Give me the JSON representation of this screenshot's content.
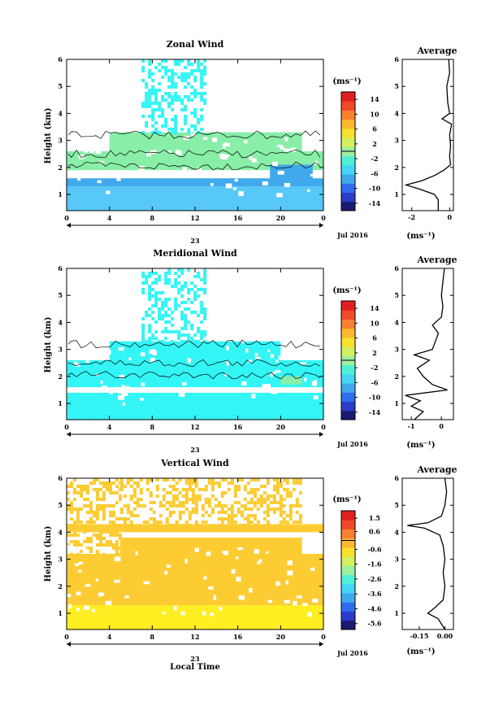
{
  "figure": {
    "date_label": "Jul 2016",
    "day_label": "23",
    "local_time_label": "Local Time",
    "ylabel": "Height (km)",
    "avg_title": "Average",
    "unit": "(ms⁻¹)",
    "colors": {
      "white": "#ffffff",
      "cyan": "#33f5f5",
      "green": "#88eea8",
      "lightblue": "#58c8f8",
      "blue": "#3fa9ec",
      "yellow": "#ffee22",
      "gold": "#fdcc33",
      "orange": "#f8a840"
    }
  },
  "chart_data": [
    {
      "type": "heatmap",
      "title": "Zonal Wind",
      "xlabel": "",
      "ylabel": "Height (km)",
      "xlim": [
        0,
        24
      ],
      "ylim": [
        0.4,
        6
      ],
      "xticks": [
        "0",
        "4",
        "8",
        "12",
        "16",
        "20",
        "0"
      ],
      "yticks": [
        "1",
        "2",
        "3",
        "4",
        "5",
        "6"
      ],
      "colorbar": {
        "unit": "(ms⁻¹)",
        "ticks": [
          "14",
          "10",
          "6",
          "2",
          "-2",
          "-6",
          "-10",
          "-14"
        ],
        "range": [
          -16,
          16
        ],
        "palette": [
          "#1a1a6e",
          "#2a3cc9",
          "#2f6cf0",
          "#3fa9ec",
          "#45d5f5",
          "#50f0d8",
          "#9cf0a0",
          "#d4f060",
          "#f8e030",
          "#fcb830",
          "#f88030",
          "#ef4a2a",
          "#e02020"
        ]
      },
      "regions": [
        {
          "x0": 0,
          "x1": 24,
          "y0": 0.4,
          "y1": 1.3,
          "color": "lightblue"
        },
        {
          "x0": 0,
          "x1": 24,
          "y0": 1.3,
          "y1": 1.6,
          "color": "blue"
        },
        {
          "x0": 0,
          "x1": 24,
          "y0": 1.6,
          "y1": 1.9,
          "color": "white"
        },
        {
          "x0": 0,
          "x1": 24,
          "y0": 1.9,
          "y1": 2.6,
          "color": "green"
        },
        {
          "x0": 4,
          "x1": 22,
          "y0": 2.6,
          "y1": 3.3,
          "color": "green"
        },
        {
          "x0": 19,
          "x1": 23,
          "y0": 1.3,
          "y1": 2.1,
          "color": "blue"
        },
        {
          "x0": 7,
          "x1": 13,
          "y0": 3.3,
          "y1": 6,
          "color": "cyan",
          "sparse": true
        }
      ],
      "average": {
        "xlim": [
          -2.5,
          0.2
        ],
        "xticks": [
          "-2",
          "0"
        ],
        "xlabel": "(ms⁻¹)",
        "heights": [
          0.4,
          0.8,
          1.0,
          1.2,
          1.35,
          1.5,
          1.7,
          1.9,
          2.1,
          2.4,
          2.8,
          3.2,
          3.6,
          3.8,
          4.0,
          4.4,
          5.0,
          5.5,
          6.0
        ],
        "values": [
          -0.6,
          -0.6,
          -0.8,
          -1.6,
          -2.3,
          -1.5,
          -0.8,
          -0.3,
          0.05,
          0.0,
          0.05,
          0.0,
          0.1,
          -0.4,
          0.0,
          -0.1,
          -0.15,
          0.0,
          -0.05
        ]
      }
    },
    {
      "type": "heatmap",
      "title": "Meridional Wind",
      "xlabel": "",
      "ylabel": "Height (km)",
      "xlim": [
        0,
        24
      ],
      "ylim": [
        0.4,
        6
      ],
      "xticks": [
        "0",
        "4",
        "8",
        "12",
        "16",
        "20",
        "0"
      ],
      "yticks": [
        "1",
        "2",
        "3",
        "4",
        "5",
        "6"
      ],
      "colorbar": {
        "unit": "(ms⁻¹)",
        "ticks": [
          "14",
          "10",
          "6",
          "2",
          "-2",
          "-6",
          "-10",
          "-14"
        ],
        "range": [
          -16,
          16
        ],
        "palette": [
          "#1a1a6e",
          "#2a3cc9",
          "#2f6cf0",
          "#3fa9ec",
          "#45d5f5",
          "#50f0d8",
          "#9cf0a0",
          "#d4f060",
          "#f8e030",
          "#fcb830",
          "#f88030",
          "#ef4a2a",
          "#e02020"
        ]
      },
      "regions": [
        {
          "x0": 0,
          "x1": 24,
          "y0": 0.4,
          "y1": 1.4,
          "color": "cyan"
        },
        {
          "x0": 0,
          "x1": 24,
          "y0": 1.4,
          "y1": 1.6,
          "color": "white"
        },
        {
          "x0": 0,
          "x1": 24,
          "y0": 1.6,
          "y1": 2.6,
          "color": "cyan"
        },
        {
          "x0": 4,
          "x1": 20,
          "y0": 2.6,
          "y1": 3.3,
          "color": "cyan"
        },
        {
          "x0": 20,
          "x1": 22,
          "y0": 1.7,
          "y1": 2.0,
          "color": "green"
        },
        {
          "x0": 7,
          "x1": 13,
          "y0": 3.3,
          "y1": 6,
          "color": "cyan",
          "sparse": true
        }
      ],
      "average": {
        "xlim": [
          -1.3,
          0.4
        ],
        "xticks": [
          "-1",
          "0"
        ],
        "xlabel": "(ms⁻¹)",
        "heights": [
          0.4,
          0.7,
          0.9,
          1.1,
          1.3,
          1.5,
          1.7,
          2.0,
          2.3,
          2.6,
          2.8,
          3.0,
          3.3,
          3.6,
          3.9,
          4.2,
          4.6,
          5.0,
          5.5,
          6.0
        ],
        "values": [
          -0.9,
          -0.6,
          -1.0,
          -0.7,
          -1.2,
          0.2,
          -0.3,
          -0.6,
          -0.8,
          -0.4,
          -0.9,
          -0.3,
          -0.2,
          -0.1,
          -0.3,
          0.0,
          0.05,
          0.0,
          0.05,
          0.1
        ]
      }
    },
    {
      "type": "heatmap",
      "title": "Vertical Wind",
      "xlabel": "Local Time",
      "ylabel": "Height (km)",
      "xlim": [
        0,
        24
      ],
      "ylim": [
        0.4,
        6
      ],
      "xticks": [
        "0",
        "4",
        "8",
        "12",
        "16",
        "20",
        "0"
      ],
      "yticks": [
        "1",
        "2",
        "3",
        "4",
        "5",
        "6"
      ],
      "colorbar": {
        "unit": "(ms⁻¹)",
        "ticks": [
          "1.5",
          "0.6",
          "-0.6",
          "-1.6",
          "-2.6",
          "-3.6",
          "-4.6",
          "-5.6"
        ],
        "range": [
          -6,
          2
        ],
        "palette": [
          "#1a1a6e",
          "#2a3cc9",
          "#2f6cf0",
          "#3fa9ec",
          "#45d5f5",
          "#50f0d8",
          "#9cf0a0",
          "#d4f060",
          "#f8e030",
          "#fcb830",
          "#f88030",
          "#ef4a2a",
          "#e02020"
        ]
      },
      "regions": [
        {
          "x0": 0,
          "x1": 24,
          "y0": 0.4,
          "y1": 1.3,
          "color": "yellow"
        },
        {
          "x0": 0,
          "x1": 24,
          "y0": 1.3,
          "y1": 3.2,
          "color": "gold"
        },
        {
          "x0": 5,
          "x1": 22,
          "y0": 3.2,
          "y1": 3.8,
          "color": "gold"
        },
        {
          "x0": 0,
          "x1": 24,
          "y0": 4.0,
          "y1": 4.3,
          "color": "gold"
        },
        {
          "x0": 0,
          "x1": 5,
          "y0": 2.6,
          "y1": 6,
          "color": "gold",
          "sparse": true
        },
        {
          "x0": 5,
          "x1": 22,
          "y0": 4.3,
          "y1": 6,
          "color": "gold",
          "sparse": true
        }
      ],
      "average": {
        "xlim": [
          -0.25,
          0.05
        ],
        "xticks": [
          "-0.15",
          "0.00"
        ],
        "xlabel": "(ms⁻¹)",
        "heights": [
          0.4,
          0.8,
          1.0,
          1.2,
          1.5,
          2.0,
          2.5,
          3.0,
          3.5,
          3.9,
          4.15,
          4.25,
          4.35,
          4.6,
          5.0,
          5.5,
          6.0
        ],
        "values": [
          0.0,
          -0.04,
          -0.1,
          -0.06,
          -0.01,
          0.0,
          -0.01,
          0.0,
          -0.01,
          -0.03,
          -0.12,
          -0.22,
          -0.1,
          -0.02,
          0.0,
          0.01,
          0.0
        ]
      }
    }
  ]
}
